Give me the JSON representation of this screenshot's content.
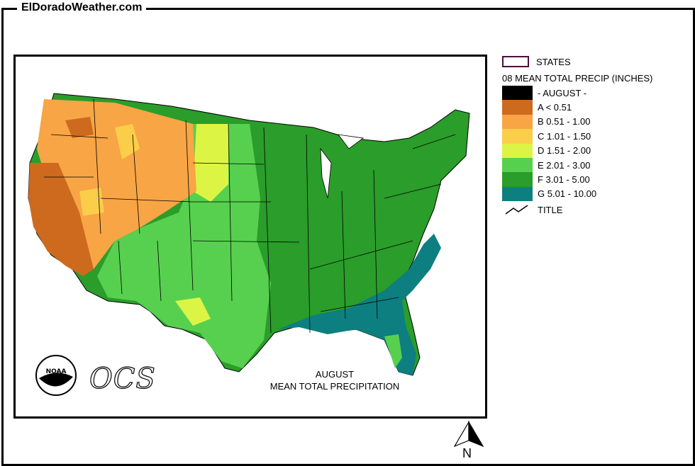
{
  "site": {
    "title": "ElDoradoWeather.com"
  },
  "map": {
    "caption_line1": "AUGUST",
    "caption_line2": "MEAN TOTAL PRECIPITATION",
    "ocs_logo_text": "OCS",
    "noaa_logo_text": "NOAA"
  },
  "legend": {
    "states_label": "STATES",
    "header": "08 MEAN TOTAL PRECIP (INCHES)",
    "items": [
      {
        "label": "- AUGUST -",
        "color": "#000000"
      },
      {
        "label": "A < 0.51",
        "color": "#cd6a1e"
      },
      {
        "label": "B 0.51 - 1.00",
        "color": "#f7a545"
      },
      {
        "label": "C 1.01 - 1.50",
        "color": "#fbce4a"
      },
      {
        "label": "D 1.51 - 2.00",
        "color": "#dcf545"
      },
      {
        "label": "E 2.01 - 3.00",
        "color": "#57d04f"
      },
      {
        "label": "F 3.01 - 5.00",
        "color": "#2a9d2a"
      },
      {
        "label": "G 5.01 - 10.00",
        "color": "#0d7f80"
      }
    ],
    "title_label": "TITLE"
  },
  "compass": {
    "label": "N"
  }
}
